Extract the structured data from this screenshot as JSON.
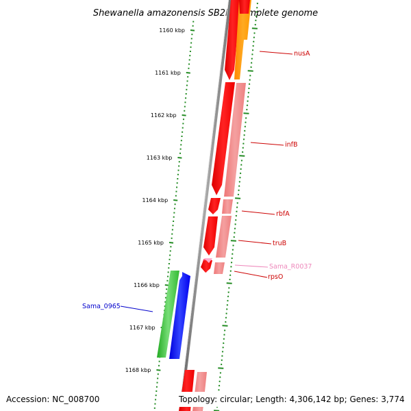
{
  "title": "Shewanella amazonensis SB2B, complete genome",
  "footer": {
    "accession": "Accession: NC_008700",
    "topology": "Topology: circular; Length: 4,306,142 bp; Genes: 3,774"
  },
  "ruler": {
    "labels": [
      "1160 kbp",
      "1161 kbp",
      "1162 kbp",
      "1163 kbp",
      "1164 kbp",
      "1165 kbp",
      "1166 kbp",
      "1167 kbp",
      "1168 kbp"
    ]
  },
  "genes": [
    {
      "name": "nusA",
      "color": "#cc0000"
    },
    {
      "name": "infB",
      "color": "#cc0000"
    },
    {
      "name": "rbfA",
      "color": "#cc0000"
    },
    {
      "name": "truB",
      "color": "#cc0000"
    },
    {
      "name": "Sama_R0037",
      "color": "#ee88bb"
    },
    {
      "name": "rpsO",
      "color": "#cc0000"
    },
    {
      "name": "Sama_0965",
      "color": "#0000cc"
    }
  ],
  "colors": {
    "forward_strand": "#ff0000",
    "forward_strand_light": "#f08080",
    "rna": "#ff9900",
    "reverse_gene_green": "#33bb33",
    "reverse_gene_blue": "#0000ff",
    "tick": "#228b22",
    "backbone": "#808080"
  }
}
